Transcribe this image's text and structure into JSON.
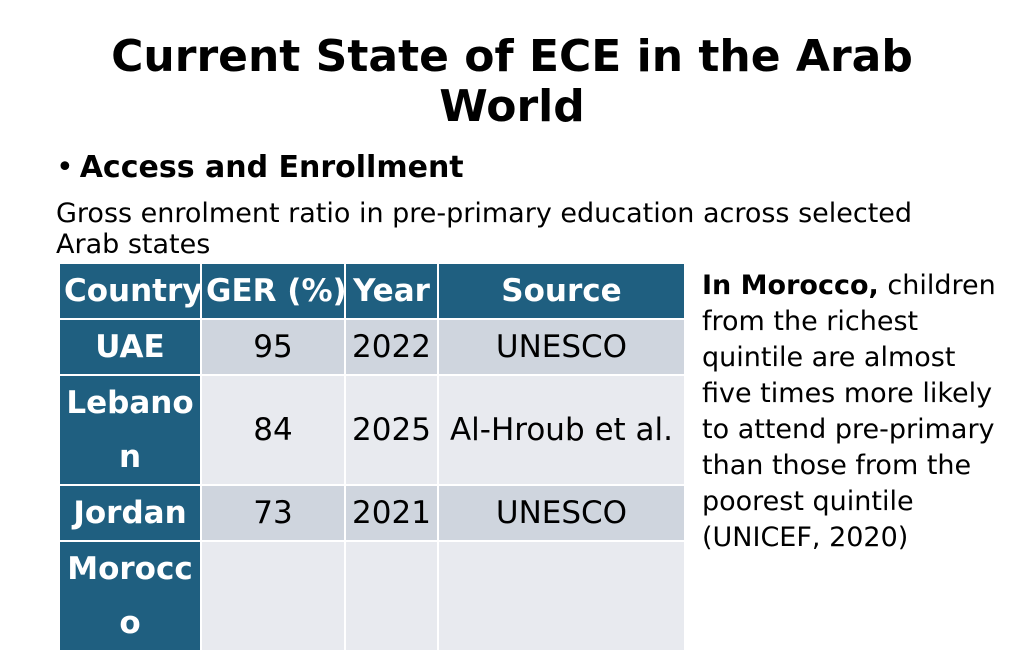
{
  "slide": {
    "title_line1": "Current State of ECE in the Arab",
    "title_line2": "World",
    "bullet_dot": "•",
    "bullet": "Access and Enrollment",
    "subtitle": "Gross enrolment ratio in pre-primary education across selected Arab states"
  },
  "table": {
    "headers": [
      "Country",
      "GER (%)",
      "Year",
      "Source"
    ],
    "rows": [
      {
        "country": "UAE",
        "ger": "95",
        "year": "2022",
        "source": "UNESCO"
      },
      {
        "country": "Lebanon",
        "ger": "84",
        "year": "2025",
        "source": "Al-Hroub et al."
      },
      {
        "country": "Jordan",
        "ger": "73",
        "year": "2021",
        "source": "UNESCO"
      },
      {
        "country": "Morocco",
        "ger": "",
        "year": "",
        "source": ""
      }
    ]
  },
  "side_note": {
    "lead": "In Morocco,",
    "body": "children from the richest quintile are almost five times more likely to attend pre-primary than those from the poorest quintile (UNICEF, 2020)"
  },
  "colors": {
    "header_bg": "#1f5f80",
    "row_odd": "#cfd5de",
    "row_even": "#e8eaef"
  }
}
